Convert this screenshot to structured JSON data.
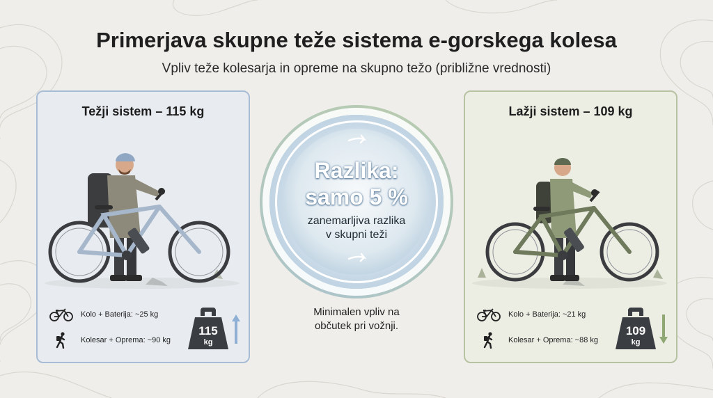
{
  "title": "Primerjava skupne teže sistema e-gorskega kolesa",
  "subtitle": "Vpliv teže kolesarja in opreme na skupno težo (približne vrednosti)",
  "heavy": {
    "title": "Težji sistem – 115 kg",
    "bike_stat": "Kolo + Baterija: ~25 kg",
    "rider_stat": "Kolesar + Oprema: ~90 kg",
    "weight_value": "115",
    "weight_unit": "kg",
    "color": "#a9bcd6"
  },
  "light": {
    "title": "Lažji sistem – 109 kg",
    "bike_stat": "Kolo + Baterija: ~21 kg",
    "rider_stat": "Kolesar + Oprema: ~88 kg",
    "weight_value": "109",
    "weight_unit": "kg",
    "color": "#b7c2a2"
  },
  "center": {
    "headline_1": "Razlika:",
    "headline_2": "samo 5 %",
    "sub_1": "zanemarljiva razlika",
    "sub_2": "v skupni teži"
  },
  "caption": {
    "line_1": "Minimalen vpliv na",
    "line_2": "občutek pri vožnji."
  },
  "icons": [
    "bicycle-icon",
    "hiker-icon",
    "weight-icon",
    "arrow-up-icon",
    "arrow-down-icon",
    "arrow-right-icon"
  ]
}
